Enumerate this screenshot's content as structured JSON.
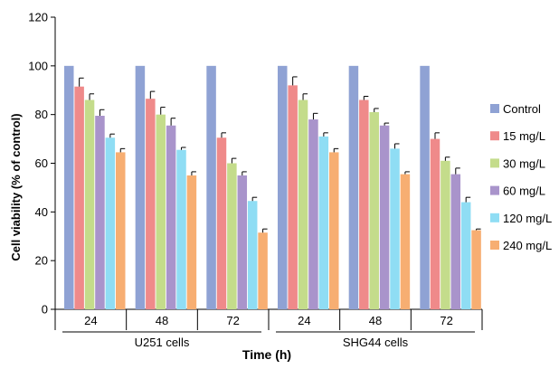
{
  "chart_data": {
    "type": "bar",
    "ylabel": "Cell viability (% of control)",
    "xlabel": "Time (h)",
    "ylim": [
      0,
      120
    ],
    "yticks": [
      0,
      20,
      40,
      60,
      80,
      100,
      120
    ],
    "grid": false,
    "legend_position": "right",
    "groups": [
      "U251 cells",
      "SHG44 cells"
    ],
    "categories": [
      "24",
      "48",
      "72",
      "24",
      "48",
      "72"
    ],
    "series": [
      {
        "name": "Control",
        "color": "#8FA2D4",
        "values": [
          100,
          100,
          100,
          100,
          100,
          100
        ],
        "errors": [
          0,
          0,
          0,
          0,
          0,
          0
        ]
      },
      {
        "name": "15 mg/L",
        "color": "#EF8A8A",
        "values": [
          91.5,
          86.5,
          70.5,
          92,
          86,
          70
        ],
        "errors": [
          3.5,
          3,
          2,
          3.5,
          1.5,
          2.5
        ]
      },
      {
        "name": "30 mg/L",
        "color": "#C4DC8B",
        "values": [
          86,
          80,
          60,
          86,
          81,
          61
        ],
        "errors": [
          2.5,
          3,
          2,
          2.5,
          1.5,
          1.5
        ]
      },
      {
        "name": "60 mg/L",
        "color": "#A994CB",
        "values": [
          79.5,
          75.5,
          55,
          78,
          75.5,
          55.5
        ],
        "errors": [
          2.5,
          3,
          1.5,
          2.5,
          1,
          2.5
        ]
      },
      {
        "name": "120 mg/L",
        "color": "#8FDDF4",
        "values": [
          70.5,
          65.5,
          44.5,
          71,
          66,
          44
        ],
        "errors": [
          1.5,
          1,
          1.5,
          1.5,
          2,
          2
        ]
      },
      {
        "name": "240 mg/L",
        "color": "#F7AE72",
        "values": [
          64.5,
          55,
          31.5,
          64.5,
          55.5,
          32.5
        ],
        "errors": [
          1.5,
          1.5,
          1.5,
          1.5,
          1,
          0.5
        ]
      }
    ]
  }
}
